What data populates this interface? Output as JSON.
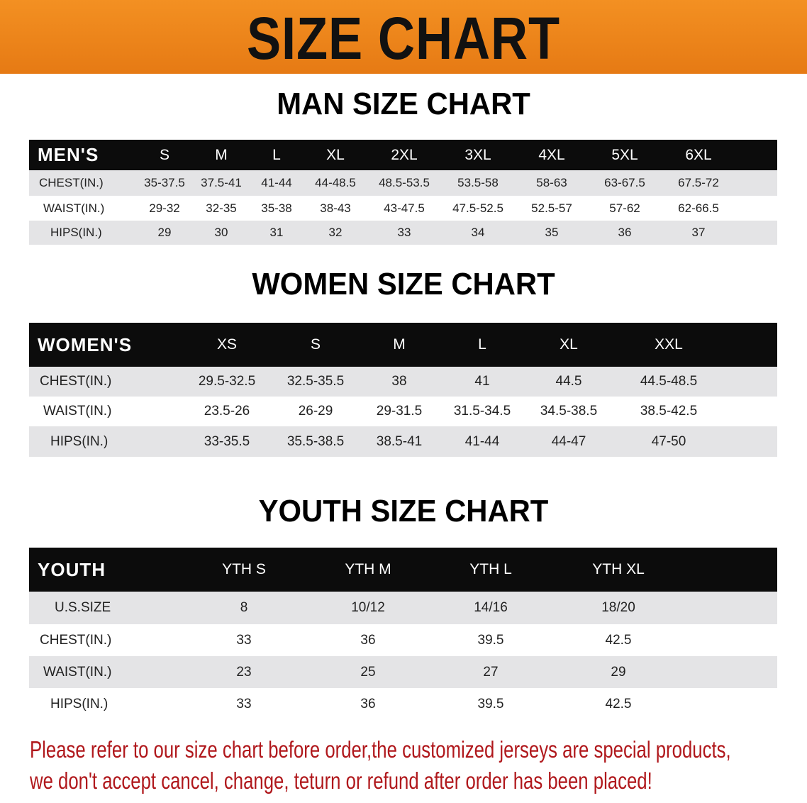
{
  "banner": {
    "title": "SIZE CHART",
    "color": "#ee8420"
  },
  "men": {
    "title": "MAN SIZE CHART",
    "header": [
      "MEN'S",
      "S",
      "M",
      "L",
      "XL",
      "2XL",
      "3XL",
      "4XL",
      "5XL",
      "6XL"
    ],
    "rows": [
      [
        "CHEST(IN.)",
        "35-37.5",
        "37.5-41",
        "41-44",
        "44-48.5",
        "48.5-53.5",
        "53.5-58",
        "58-63",
        "63-67.5",
        "67.5-72"
      ],
      [
        "WAIST(IN.)",
        "29-32",
        "32-35",
        "35-38",
        "38-43",
        "43-47.5",
        "47.5-52.5",
        "52.5-57",
        "57-62",
        "62-66.5"
      ],
      [
        "HIPS(IN.)",
        "29",
        "30",
        "31",
        "32",
        "33",
        "34",
        "35",
        "36",
        "37"
      ]
    ]
  },
  "women": {
    "title": "WOMEN SIZE CHART",
    "header": [
      "WOMEN'S",
      "XS",
      "S",
      "M",
      "L",
      "XL",
      "XXL"
    ],
    "rows": [
      [
        "CHEST(IN.)",
        "29.5-32.5",
        "32.5-35.5",
        "38",
        "41",
        "44.5",
        "44.5-48.5"
      ],
      [
        "WAIST(IN.)",
        "23.5-26",
        "26-29",
        "29-31.5",
        "31.5-34.5",
        "34.5-38.5",
        "38.5-42.5"
      ],
      [
        "HIPS(IN.)",
        "33-35.5",
        "35.5-38.5",
        "38.5-41",
        "41-44",
        "44-47",
        "47-50"
      ]
    ]
  },
  "youth": {
    "title": "YOUTH SIZE CHART",
    "header": [
      "YOUTH",
      "YTH S",
      "YTH M",
      "YTH L",
      "YTH XL"
    ],
    "rows": [
      [
        "U.S.SIZE",
        "8",
        "10/12",
        "14/16",
        "18/20"
      ],
      [
        "CHEST(IN.)",
        "33",
        "36",
        "39.5",
        "42.5"
      ],
      [
        "WAIST(IN.)",
        "23",
        "25",
        "27",
        "29"
      ],
      [
        "HIPS(IN.)",
        "33",
        "36",
        "39.5",
        "42.5"
      ]
    ]
  },
  "note": {
    "line1": "Please refer to our size chart before order,the customized jerseys are special products,",
    "line2": "we don't accept cancel, change, teturn or refund after order has been placed!",
    "color": "#b0181c"
  }
}
